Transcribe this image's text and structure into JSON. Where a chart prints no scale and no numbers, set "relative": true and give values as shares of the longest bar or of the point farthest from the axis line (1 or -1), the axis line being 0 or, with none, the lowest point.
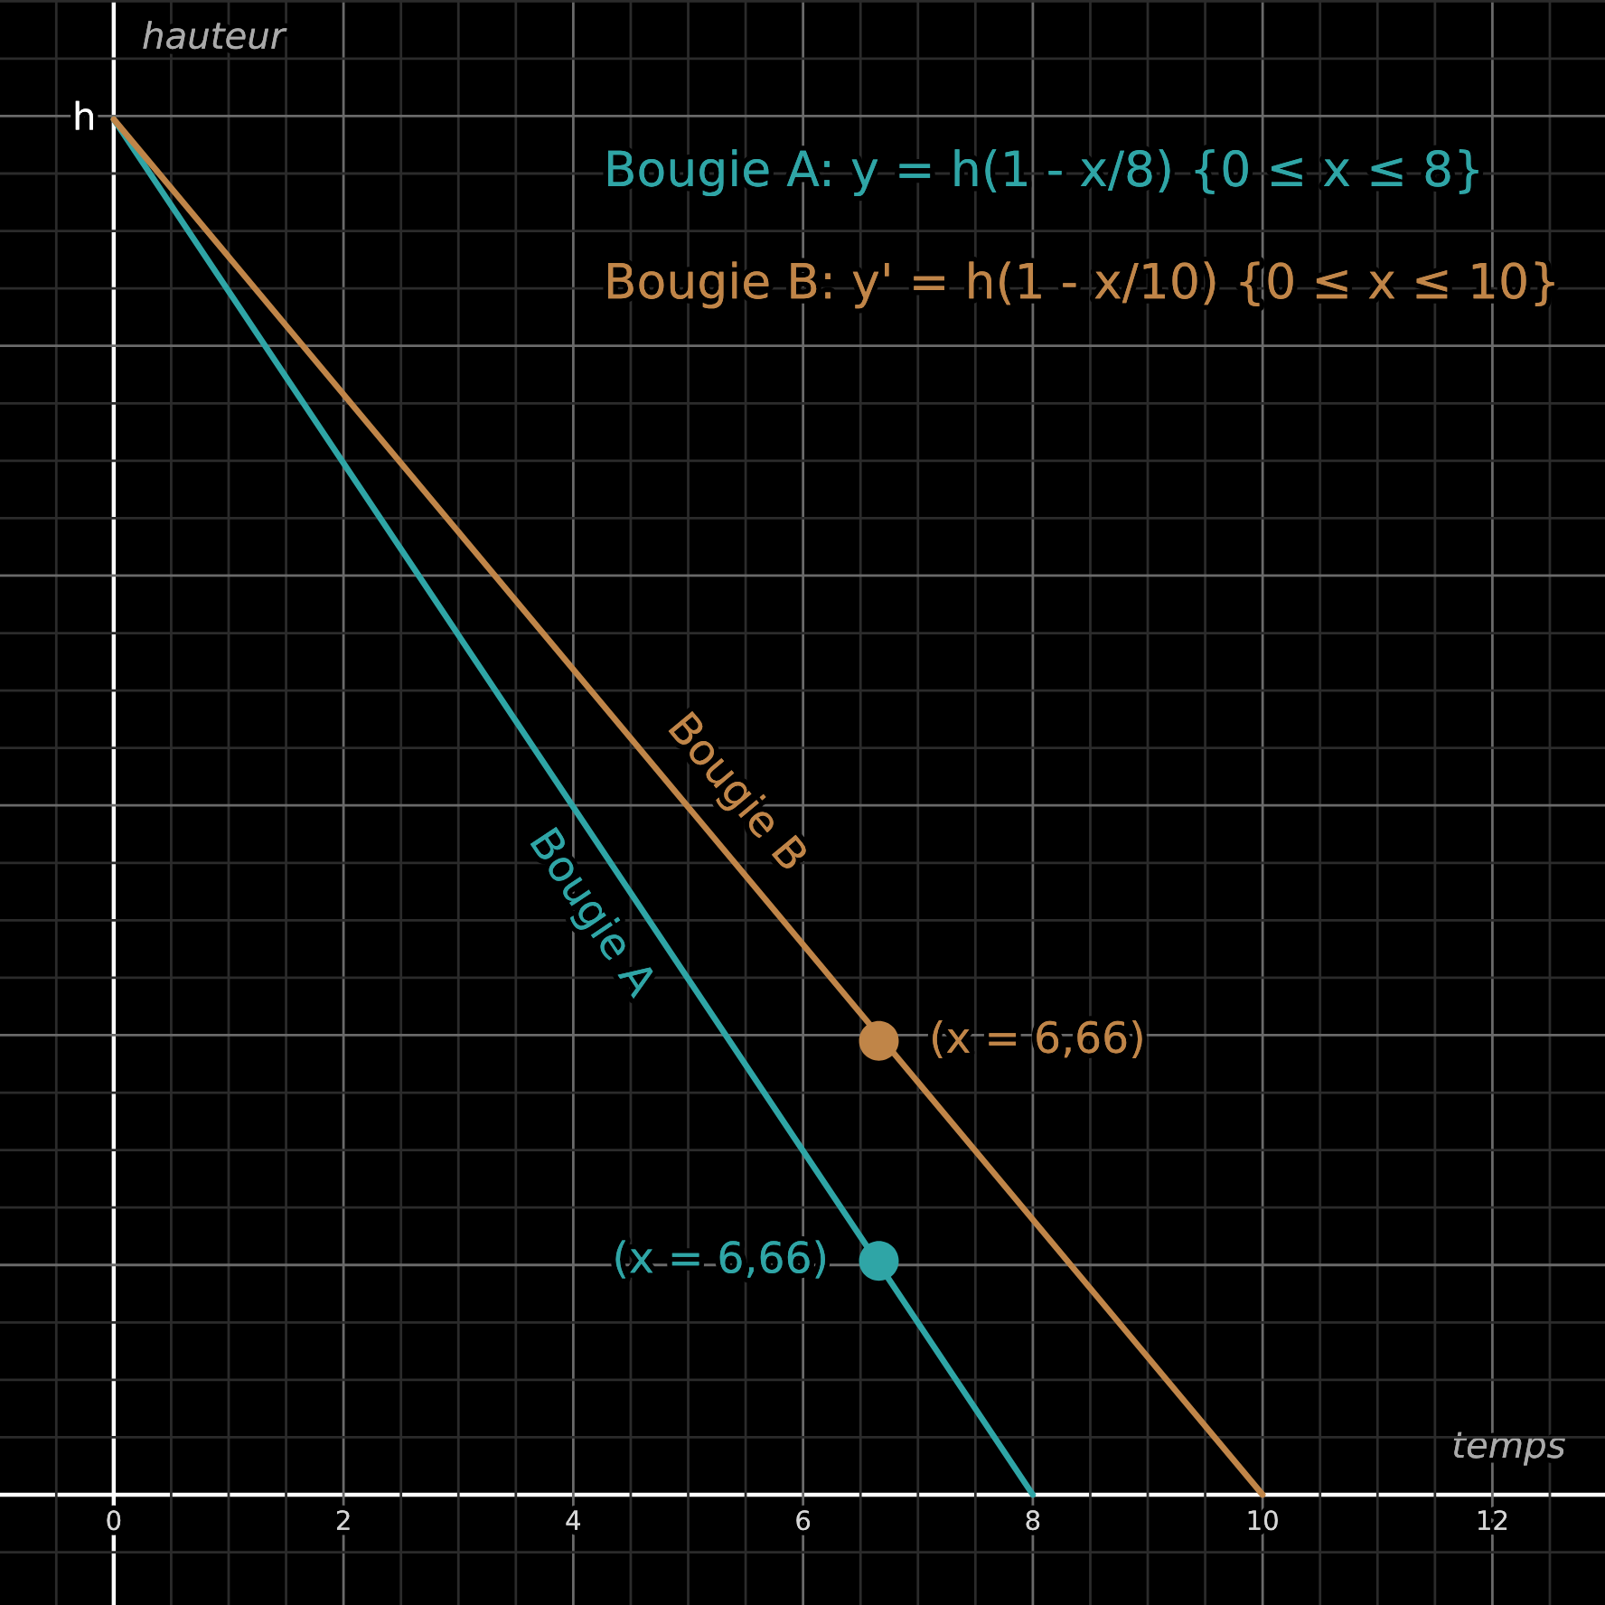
{
  "chart_data": {
    "type": "line",
    "relative": true,
    "xlabel": "temps",
    "ylabel": "hauteur",
    "xlim": [
      -0.99,
      12.98
    ],
    "xticks": [
      0,
      2,
      4,
      6,
      8,
      10,
      12
    ],
    "grid": true,
    "legend": "top right",
    "series": [
      {
        "name": "Bougie A: y = h(1 - x/8) {0 ≤ x ≤ 8}",
        "color": "#2fa5a6",
        "x": [
          0,
          8
        ],
        "values": [
          1,
          0
        ]
      },
      {
        "name": "Bougie B: y' = h(1 - x/10) {0 ≤ x ≤ 10}",
        "color": "#c08548",
        "x": [
          0,
          10
        ],
        "values": [
          1,
          0
        ]
      },
      {
        "type": "scatter",
        "marker": "circle",
        "color": "#c08548",
        "x": [
          6.66
        ],
        "values": [
          0.33
        ]
      },
      {
        "type": "scatter",
        "marker": "circle",
        "color": "#2fa5a6",
        "x": [
          6.66
        ],
        "values": [
          0.17
        ]
      }
    ],
    "annotations": [
      {
        "text": "h",
        "x": 0,
        "y": 1
      },
      {
        "text": "Bougie A",
        "x": 4.46,
        "y": 0.44
      },
      {
        "text": "Bougie B",
        "x": 5.13,
        "y": 0.49
      },
      {
        "text": "(x = 6,66)",
        "x": 6.66,
        "y": 0.33
      },
      {
        "text": "(x = 6,66)",
        "x": 6.66,
        "y": 0.17
      }
    ]
  }
}
